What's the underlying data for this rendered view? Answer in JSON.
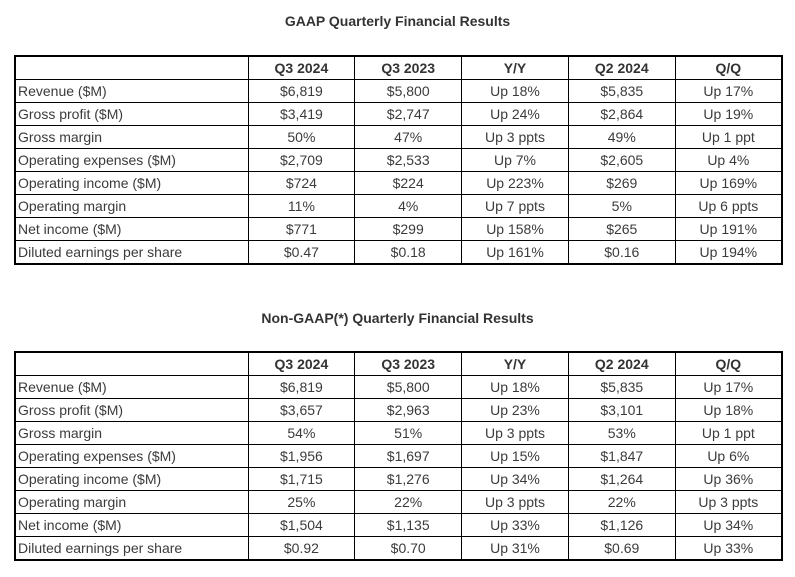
{
  "page": {
    "background": "#ffffff",
    "text_color": "#3b3b3b",
    "border_color": "#000000"
  },
  "chart_data": [
    {
      "type": "table",
      "title": "GAAP Quarterly Financial Results",
      "columns": [
        "",
        "Q3 2024",
        "Q3 2023",
        "Y/Y",
        "Q2 2024",
        "Q/Q"
      ],
      "rows": [
        {
          "label": "Revenue ($M)",
          "values": [
            "$6,819",
            "$5,800",
            "Up 18%",
            "$5,835",
            "Up 17%"
          ]
        },
        {
          "label": "Gross profit ($M)",
          "values": [
            "$3,419",
            "$2,747",
            "Up 24%",
            "$2,864",
            "Up 19%"
          ]
        },
        {
          "label": "Gross margin",
          "values": [
            "50%",
            "47%",
            "Up 3 ppts",
            "49%",
            "Up 1 ppt"
          ]
        },
        {
          "label": "Operating expenses ($M)",
          "values": [
            "$2,709",
            "$2,533",
            "Up 7%",
            "$2,605",
            "Up 4%"
          ]
        },
        {
          "label": "Operating income ($M)",
          "values": [
            "$724",
            "$224",
            "Up 223%",
            "$269",
            "Up 169%"
          ]
        },
        {
          "label": "Operating margin",
          "values": [
            "11%",
            "4%",
            "Up 7 ppts",
            "5%",
            "Up 6 ppts"
          ]
        },
        {
          "label": "Net income ($M)",
          "values": [
            "$771",
            "$299",
            "Up 158%",
            "$265",
            "Up 191%"
          ]
        },
        {
          "label": "Diluted earnings per share",
          "values": [
            "$0.47",
            "$0.18",
            "Up 161%",
            "$0.16",
            "Up 194%"
          ]
        }
      ]
    },
    {
      "type": "table",
      "title": "Non-GAAP(*) Quarterly Financial Results",
      "columns": [
        "",
        "Q3 2024",
        "Q3 2023",
        "Y/Y",
        "Q2 2024",
        "Q/Q"
      ],
      "rows": [
        {
          "label": "Revenue ($M)",
          "values": [
            "$6,819",
            "$5,800",
            "Up 18%",
            "$5,835",
            "Up 17%"
          ]
        },
        {
          "label": "Gross profit ($M)",
          "values": [
            "$3,657",
            "$2,963",
            "Up 23%",
            "$3,101",
            "Up 18%"
          ]
        },
        {
          "label": "Gross margin",
          "values": [
            "54%",
            "51%",
            "Up 3 ppts",
            "53%",
            "Up 1 ppt"
          ]
        },
        {
          "label": "Operating expenses ($M)",
          "values": [
            "$1,956",
            "$1,697",
            "Up 15%",
            "$1,847",
            "Up 6%"
          ]
        },
        {
          "label": "Operating income ($M)",
          "values": [
            "$1,715",
            "$1,276",
            "Up 34%",
            "$1,264",
            "Up 36%"
          ]
        },
        {
          "label": "Operating margin",
          "values": [
            "25%",
            "22%",
            "Up 3 ppts",
            "22%",
            "Up 3 ppts"
          ]
        },
        {
          "label": "Net income ($M)",
          "values": [
            "$1,504",
            "$1,135",
            "Up 33%",
            "$1,126",
            "Up 34%"
          ]
        },
        {
          "label": "Diluted earnings per share",
          "values": [
            "$0.92",
            "$0.70",
            "Up 31%",
            "$0.69",
            "Up 33%"
          ]
        }
      ]
    }
  ]
}
